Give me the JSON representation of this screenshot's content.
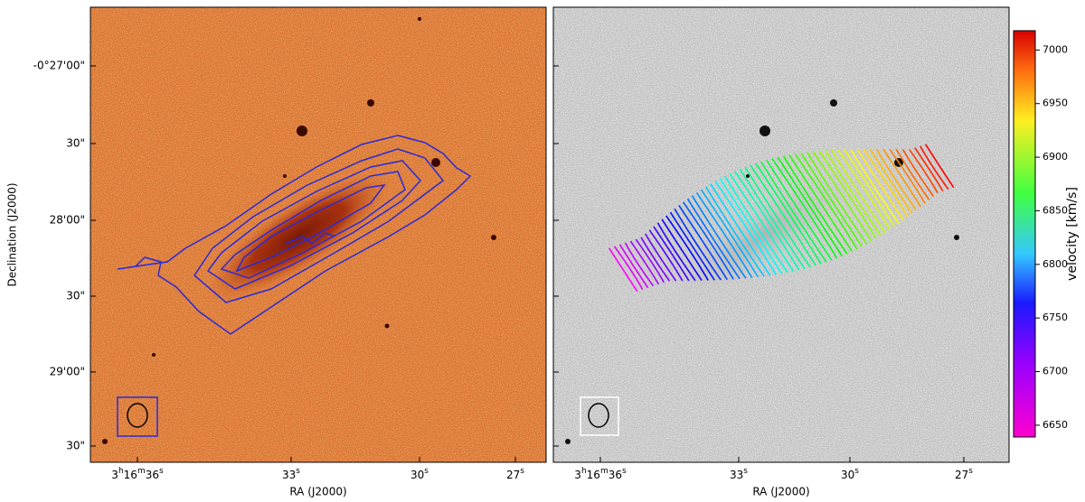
{
  "left_panel": {
    "x_axis": {
      "label": "RA (J2000)",
      "ticks": [
        "3h16m36s",
        "33s",
        "30s",
        "27s"
      ]
    },
    "y_axis": {
      "label": "Declination (J2000)",
      "ticks": [
        "-0°27'00\"",
        "30\"",
        "28'00\"",
        "30\"",
        "29'00\"",
        "30\""
      ]
    }
  },
  "right_panel": {
    "x_axis": {
      "label": "RA (J2000)",
      "ticks": [
        "3h16m36s",
        "33s",
        "30s",
        "27s"
      ]
    }
  },
  "colorbar": {
    "label": "velocity [km/s]",
    "lim": [
      6639,
      7018
    ],
    "ticks": [
      6650,
      6700,
      6750,
      6800,
      6850,
      6900,
      6950,
      7000
    ]
  }
}
